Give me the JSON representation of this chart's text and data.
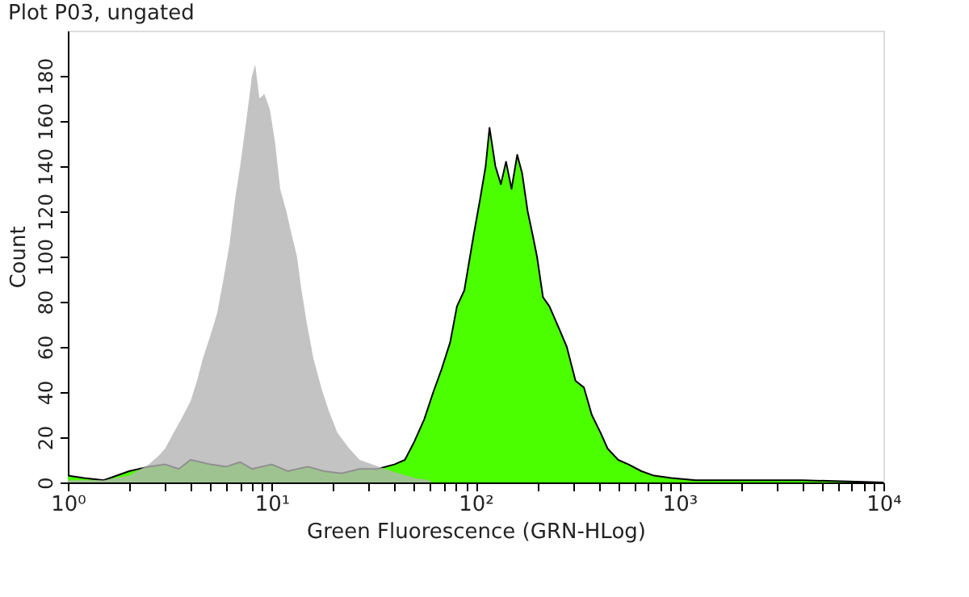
{
  "chart_data": {
    "type": "area",
    "title": "Plot P03, ungated",
    "xlabel": "Green Fluorescence (GRN-HLog)",
    "ylabel": "Count",
    "log": "x",
    "xlim": [
      1,
      10000
    ],
    "xticks": [
      {
        "value": 1,
        "label": "10⁰"
      },
      {
        "value": 2,
        "label": null
      },
      {
        "value": 3,
        "label": null
      },
      {
        "value": 4,
        "label": null
      },
      {
        "value": 5,
        "label": null
      },
      {
        "value": 6,
        "label": null
      },
      {
        "value": 7,
        "label": null
      },
      {
        "value": 8,
        "label": null
      },
      {
        "value": 9,
        "label": null
      },
      {
        "value": 10,
        "label": "10¹"
      },
      {
        "value": 20,
        "label": null
      },
      {
        "value": 30,
        "label": null
      },
      {
        "value": 40,
        "label": null
      },
      {
        "value": 50,
        "label": null
      },
      {
        "value": 60,
        "label": null
      },
      {
        "value": 70,
        "label": null
      },
      {
        "value": 80,
        "label": null
      },
      {
        "value": 90,
        "label": null
      },
      {
        "value": 100,
        "label": "10²"
      },
      {
        "value": 200,
        "label": null
      },
      {
        "value": 300,
        "label": null
      },
      {
        "value": 400,
        "label": null
      },
      {
        "value": 500,
        "label": null
      },
      {
        "value": 600,
        "label": null
      },
      {
        "value": 700,
        "label": null
      },
      {
        "value": 800,
        "label": null
      },
      {
        "value": 900,
        "label": null
      },
      {
        "value": 1000,
        "label": "10³"
      },
      {
        "value": 2000,
        "label": null
      },
      {
        "value": 3000,
        "label": null
      },
      {
        "value": 4000,
        "label": null
      },
      {
        "value": 5000,
        "label": null
      },
      {
        "value": 6000,
        "label": null
      },
      {
        "value": 7000,
        "label": null
      },
      {
        "value": 8000,
        "label": null
      },
      {
        "value": 9000,
        "label": null
      },
      {
        "value": 10000,
        "label": "10⁴"
      }
    ],
    "ylim": [
      0,
      200
    ],
    "yticks": [
      0,
      20,
      40,
      60,
      80,
      100,
      120,
      140,
      160,
      180
    ],
    "series": [
      {
        "color": "#4cff00",
        "line_style": "solid",
        "x": [
          1,
          1.2,
          1.5,
          2,
          2.5,
          3,
          3.5,
          4,
          5,
          6,
          7,
          8,
          10,
          12,
          15,
          18,
          22,
          27,
          33,
          40,
          45,
          50,
          56,
          62,
          68,
          75,
          81,
          88,
          98,
          105,
          112,
          117,
          125,
          133,
          141,
          150,
          160,
          169,
          180,
          190,
          200,
          214,
          230,
          257,
          280,
          309,
          340,
          371,
          410,
          444,
          500,
          562,
          650,
          750,
          912,
          1200,
          2000,
          4000,
          10000
        ],
        "values": [
          3,
          2,
          1,
          5,
          7,
          8,
          6,
          10,
          8,
          7,
          9,
          6,
          8,
          5,
          7,
          5,
          4,
          6,
          6,
          8,
          10,
          18,
          28,
          40,
          50,
          62,
          78,
          85,
          110,
          125,
          140,
          157,
          140,
          132,
          142,
          130,
          145,
          137,
          120,
          110,
          100,
          82,
          78,
          68,
          60,
          45,
          42,
          30,
          22,
          15,
          10,
          8,
          5,
          3,
          2,
          1,
          1,
          1,
          0
        ]
      },
      {
        "color": "#b4b4b4",
        "x": [
          1,
          1.5,
          2,
          2.5,
          2.8,
          3,
          3.3,
          3.6,
          4,
          4.3,
          4.6,
          5,
          5.4,
          5.8,
          6.2,
          6.6,
          7,
          7.5,
          8,
          8.3,
          8.7,
          9.2,
          9.8,
          10.4,
          11,
          11.8,
          12.5,
          13.3,
          14,
          14.9,
          16,
          17.5,
          19,
          21,
          24,
          27,
          31,
          36,
          42,
          50,
          60
        ],
        "values": [
          1,
          1,
          3,
          8,
          12,
          15,
          22,
          28,
          36,
          45,
          55,
          65,
          75,
          90,
          105,
          125,
          140,
          160,
          180,
          185,
          170,
          172,
          165,
          150,
          130,
          120,
          110,
          100,
          85,
          70,
          55,
          42,
          32,
          22,
          15,
          10,
          8,
          6,
          4,
          2,
          1
        ]
      }
    ]
  }
}
